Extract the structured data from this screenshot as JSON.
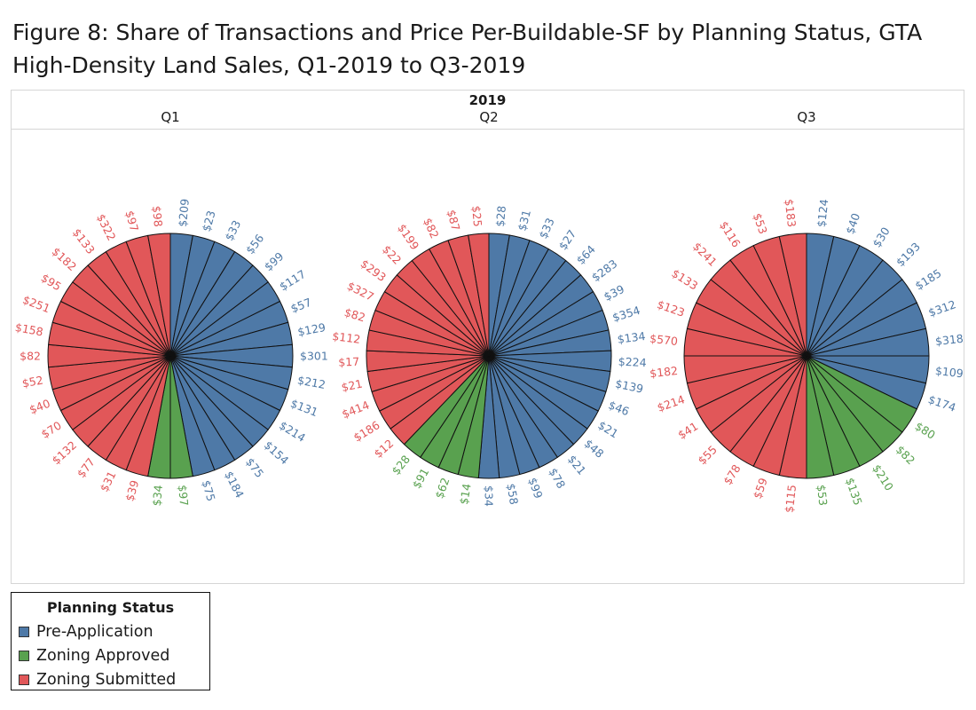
{
  "title": "Figure 8: Share of Transactions and Price Per-Buildable-SF by Planning Status, GTA High-Density Land Sales, Q1-2019 to Q3-2019",
  "colors": {
    "Pre-Application": "#4e79a7",
    "Zoning Approved": "#59a14f",
    "Zoning Submitted": "#e15759"
  },
  "legend": {
    "title": "Planning Status",
    "items": [
      "Pre-Application",
      "Zoning Approved",
      "Zoning Submitted"
    ]
  },
  "chart_data": {
    "type": "pie",
    "year": "2019",
    "legend_position": "bottom-left",
    "slice_description": "Each slice is one transaction of equal share; label is price per buildable SF",
    "pies": [
      {
        "quarter": "Q1",
        "slices": [
          {
            "status": "Pre-Application",
            "label": "$209"
          },
          {
            "status": "Pre-Application",
            "label": "$23"
          },
          {
            "status": "Pre-Application",
            "label": "$33"
          },
          {
            "status": "Pre-Application",
            "label": "$56"
          },
          {
            "status": "Pre-Application",
            "label": "$99"
          },
          {
            "status": "Pre-Application",
            "label": "$117"
          },
          {
            "status": "Pre-Application",
            "label": "$57"
          },
          {
            "status": "Pre-Application",
            "label": "$129"
          },
          {
            "status": "Pre-Application",
            "label": "$301"
          },
          {
            "status": "Pre-Application",
            "label": "$212"
          },
          {
            "status": "Pre-Application",
            "label": "$131"
          },
          {
            "status": "Pre-Application",
            "label": "$214"
          },
          {
            "status": "Pre-Application",
            "label": "$154"
          },
          {
            "status": "Pre-Application",
            "label": "$75"
          },
          {
            "status": "Pre-Application",
            "label": "$184"
          },
          {
            "status": "Pre-Application",
            "label": "$75"
          },
          {
            "status": "Zoning Approved",
            "label": "$97"
          },
          {
            "status": "Zoning Approved",
            "label": "$34"
          },
          {
            "status": "Zoning Submitted",
            "label": "$39"
          },
          {
            "status": "Zoning Submitted",
            "label": "$31"
          },
          {
            "status": "Zoning Submitted",
            "label": "$77"
          },
          {
            "status": "Zoning Submitted",
            "label": "$132"
          },
          {
            "status": "Zoning Submitted",
            "label": "$70"
          },
          {
            "status": "Zoning Submitted",
            "label": "$40"
          },
          {
            "status": "Zoning Submitted",
            "label": "$52"
          },
          {
            "status": "Zoning Submitted",
            "label": "$82"
          },
          {
            "status": "Zoning Submitted",
            "label": "$158"
          },
          {
            "status": "Zoning Submitted",
            "label": "$251"
          },
          {
            "status": "Zoning Submitted",
            "label": "$95"
          },
          {
            "status": "Zoning Submitted",
            "label": "$182"
          },
          {
            "status": "Zoning Submitted",
            "label": "$133"
          },
          {
            "status": "Zoning Submitted",
            "label": "$322"
          },
          {
            "status": "Zoning Submitted",
            "label": "$97"
          },
          {
            "status": "Zoning Submitted",
            "label": "$98"
          }
        ]
      },
      {
        "quarter": "Q2",
        "slices": [
          {
            "status": "Pre-Application",
            "label": "$28"
          },
          {
            "status": "Pre-Application",
            "label": "$31"
          },
          {
            "status": "Pre-Application",
            "label": "$33"
          },
          {
            "status": "Pre-Application",
            "label": "$27"
          },
          {
            "status": "Pre-Application",
            "label": "$64"
          },
          {
            "status": "Pre-Application",
            "label": "$283"
          },
          {
            "status": "Pre-Application",
            "label": "$39"
          },
          {
            "status": "Pre-Application",
            "label": "$354"
          },
          {
            "status": "Pre-Application",
            "label": "$134"
          },
          {
            "status": "Pre-Application",
            "label": "$224"
          },
          {
            "status": "Pre-Application",
            "label": "$139"
          },
          {
            "status": "Pre-Application",
            "label": "$46"
          },
          {
            "status": "Pre-Application",
            "label": "$21"
          },
          {
            "status": "Pre-Application",
            "label": "$48"
          },
          {
            "status": "Pre-Application",
            "label": "$21"
          },
          {
            "status": "Pre-Application",
            "label": "$78"
          },
          {
            "status": "Pre-Application",
            "label": "$99"
          },
          {
            "status": "Pre-Application",
            "label": "$58"
          },
          {
            "status": "Pre-Application",
            "label": "$34"
          },
          {
            "status": "Zoning Approved",
            "label": "$14"
          },
          {
            "status": "Zoning Approved",
            "label": "$62"
          },
          {
            "status": "Zoning Approved",
            "label": "$91"
          },
          {
            "status": "Zoning Approved",
            "label": "$28"
          },
          {
            "status": "Zoning Submitted",
            "label": "$12"
          },
          {
            "status": "Zoning Submitted",
            "label": "$186"
          },
          {
            "status": "Zoning Submitted",
            "label": "$414"
          },
          {
            "status": "Zoning Submitted",
            "label": "$21"
          },
          {
            "status": "Zoning Submitted",
            "label": "$17"
          },
          {
            "status": "Zoning Submitted",
            "label": "$112"
          },
          {
            "status": "Zoning Submitted",
            "label": "$82"
          },
          {
            "status": "Zoning Submitted",
            "label": "$327"
          },
          {
            "status": "Zoning Submitted",
            "label": "$293"
          },
          {
            "status": "Zoning Submitted",
            "label": "$22"
          },
          {
            "status": "Zoning Submitted",
            "label": "$199"
          },
          {
            "status": "Zoning Submitted",
            "label": "$82"
          },
          {
            "status": "Zoning Submitted",
            "label": "$87"
          },
          {
            "status": "Zoning Submitted",
            "label": "$25"
          }
        ]
      },
      {
        "quarter": "Q3",
        "slices": [
          {
            "status": "Pre-Application",
            "label": "$124"
          },
          {
            "status": "Pre-Application",
            "label": "$40"
          },
          {
            "status": "Pre-Application",
            "label": "$30"
          },
          {
            "status": "Pre-Application",
            "label": "$193"
          },
          {
            "status": "Pre-Application",
            "label": "$185"
          },
          {
            "status": "Pre-Application",
            "label": "$312"
          },
          {
            "status": "Pre-Application",
            "label": "$318"
          },
          {
            "status": "Pre-Application",
            "label": "$109"
          },
          {
            "status": "Pre-Application",
            "label": "$174"
          },
          {
            "status": "Zoning Approved",
            "label": "$80"
          },
          {
            "status": "Zoning Approved",
            "label": "$82"
          },
          {
            "status": "Zoning Approved",
            "label": "$210"
          },
          {
            "status": "Zoning Approved",
            "label": "$135"
          },
          {
            "status": "Zoning Approved",
            "label": "$53"
          },
          {
            "status": "Zoning Submitted",
            "label": "$115"
          },
          {
            "status": "Zoning Submitted",
            "label": "$59"
          },
          {
            "status": "Zoning Submitted",
            "label": "$78"
          },
          {
            "status": "Zoning Submitted",
            "label": "$55"
          },
          {
            "status": "Zoning Submitted",
            "label": "$41"
          },
          {
            "status": "Zoning Submitted",
            "label": "$214"
          },
          {
            "status": "Zoning Submitted",
            "label": "$182"
          },
          {
            "status": "Zoning Submitted",
            "label": "$570"
          },
          {
            "status": "Zoning Submitted",
            "label": "$123"
          },
          {
            "status": "Zoning Submitted",
            "label": "$133"
          },
          {
            "status": "Zoning Submitted",
            "label": "$241"
          },
          {
            "status": "Zoning Submitted",
            "label": "$116"
          },
          {
            "status": "Zoning Submitted",
            "label": "$53"
          },
          {
            "status": "Zoning Submitted",
            "label": "$183"
          }
        ]
      }
    ]
  }
}
